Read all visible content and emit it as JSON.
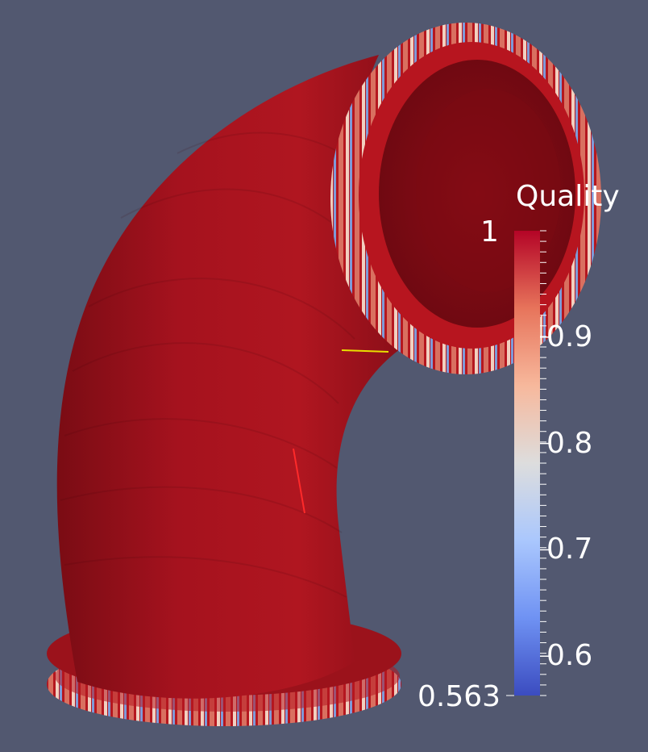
{
  "legend": {
    "title": "Quality",
    "max_label": "1",
    "min_label": "0.563",
    "min_value": 0.563,
    "max_value": 1,
    "major_ticks": [
      {
        "value": 0.9,
        "label": "0.9"
      },
      {
        "value": 0.8,
        "label": "0.8"
      },
      {
        "value": 0.7,
        "label": "0.7"
      },
      {
        "value": 0.6,
        "label": "0.6"
      }
    ],
    "colormap": [
      "#3b4cc0",
      "#6f92f3",
      "#aac7fd",
      "#dddddd",
      "#f7b89c",
      "#e7745b",
      "#b40426"
    ]
  },
  "scene": {
    "background_color": "#525870",
    "surface_color": "#a8101c",
    "object": "pipe-elbow-mesh"
  }
}
